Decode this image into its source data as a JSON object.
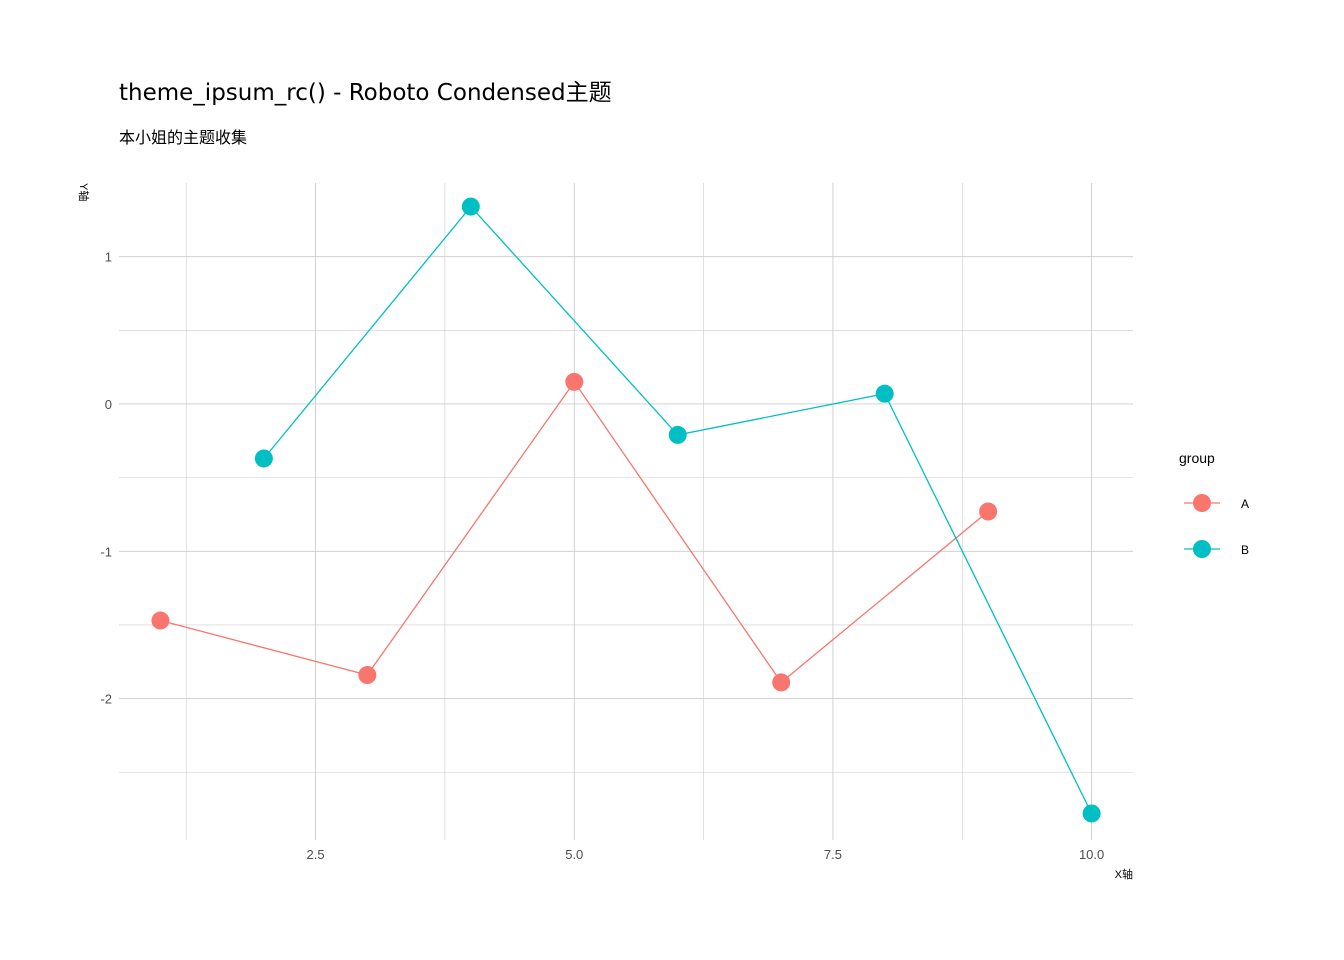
{
  "title": "theme_ipsum_rc() - Roboto Condensed主题",
  "subtitle": "本小姐的主题收集",
  "chart_data": {
    "type": "line",
    "title": "theme_ipsum_rc() - Roboto Condensed主题",
    "subtitle": "本小姐的主题收集",
    "xlabel": "X轴",
    "ylabel": "Y轴",
    "xlim": [
      0.6,
      10.4
    ],
    "ylim": [
      -2.96,
      1.5
    ],
    "x_ticks": [
      2.5,
      5.0,
      7.5,
      10.0
    ],
    "x_tick_labels": [
      "2.5",
      "5.0",
      "7.5",
      "10.0"
    ],
    "y_ticks": [
      -2,
      -1,
      0,
      1
    ],
    "y_tick_labels": [
      "-2",
      "-1",
      "0",
      "1"
    ],
    "grid": true,
    "legend_title": "group",
    "legend_position": "right",
    "series": [
      {
        "name": "A",
        "color": "#F8766D",
        "x": [
          1,
          3,
          5,
          7,
          9
        ],
        "y": [
          -1.47,
          -1.84,
          0.15,
          -1.89,
          -0.73
        ]
      },
      {
        "name": "B",
        "color": "#00BFC4",
        "x": [
          2,
          4,
          6,
          8,
          10
        ],
        "y": [
          -0.37,
          1.34,
          -0.21,
          0.07,
          -2.78
        ]
      }
    ]
  }
}
